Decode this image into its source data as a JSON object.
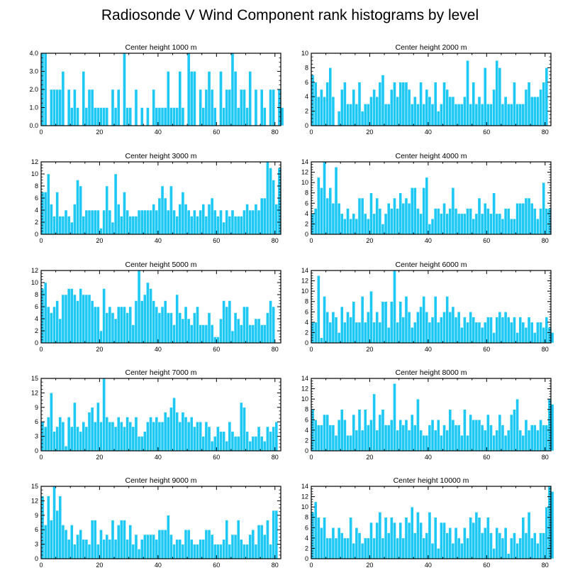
{
  "figure": {
    "title": "Radiosonde V Wind Component rank histograms by level"
  },
  "chart_data": [
    {
      "type": "bar",
      "title": "Center height 1000 m",
      "xlim": [
        0,
        82
      ],
      "xticks": [
        0,
        20,
        40,
        60,
        80
      ],
      "ylim": [
        0,
        4
      ],
      "yticks": [
        0,
        1,
        2,
        3,
        4
      ],
      "ytick_labels": [
        "0.0",
        "1.0",
        "2.0",
        "3.0",
        "4.0"
      ],
      "x_start": 0,
      "values": [
        4,
        4,
        0,
        2,
        2,
        2,
        2,
        3,
        0,
        2,
        1,
        2,
        1,
        0,
        3,
        1,
        2,
        2,
        1,
        1,
        1,
        1,
        1,
        0,
        2,
        1,
        2,
        0,
        4,
        1,
        1,
        0,
        2,
        0,
        1,
        0,
        1,
        0,
        2,
        1,
        1,
        1,
        1,
        3,
        1,
        1,
        1,
        3,
        1,
        0,
        4,
        3,
        3,
        0,
        2,
        1,
        2,
        3,
        2,
        1,
        0,
        3,
        1,
        2,
        2,
        4,
        3,
        1,
        2,
        2,
        1,
        3,
        0,
        2,
        0,
        2,
        1,
        0,
        2,
        2,
        0,
        2,
        1
      ]
    },
    {
      "type": "bar",
      "title": "Center height 2000 m",
      "xlim": [
        0,
        82
      ],
      "xticks": [
        0,
        20,
        40,
        60,
        80
      ],
      "ylim": [
        0,
        10
      ],
      "yticks": [
        0,
        2,
        4,
        6,
        8,
        10
      ],
      "ytick_labels": [
        "0",
        "2",
        "4",
        "6",
        "8",
        "10"
      ],
      "x_start": 0,
      "values": [
        7,
        6,
        4,
        5,
        4,
        6,
        8,
        4,
        0,
        2,
        5,
        6,
        3,
        3,
        5,
        3,
        6,
        2,
        3,
        3,
        4,
        5,
        4,
        6,
        7,
        3,
        3,
        5,
        6,
        4,
        6,
        6,
        6,
        5,
        3,
        4,
        3,
        6,
        3,
        5,
        4,
        3,
        6,
        2,
        3,
        6,
        5,
        4,
        4,
        3,
        3,
        3,
        4,
        9,
        3,
        6,
        3,
        4,
        3,
        8,
        3,
        3,
        5,
        9,
        8,
        3,
        4,
        3,
        3,
        6,
        3,
        3,
        3,
        5,
        6,
        4,
        4,
        4,
        5,
        6,
        8,
        0,
        0
      ]
    },
    {
      "type": "bar",
      "title": "Center height 3000 m",
      "xlim": [
        0,
        82
      ],
      "xticks": [
        0,
        20,
        40,
        60,
        80
      ],
      "ylim": [
        0,
        12
      ],
      "yticks": [
        0,
        2,
        4,
        6,
        8,
        10,
        12
      ],
      "ytick_labels": [
        "0",
        "2",
        "4",
        "6",
        "8",
        "10",
        "12"
      ],
      "x_start": 0,
      "values": [
        7,
        7,
        10,
        5,
        3,
        7,
        3,
        3,
        4,
        3,
        2,
        5,
        9,
        8,
        3,
        4,
        4,
        4,
        4,
        4,
        1,
        4,
        8,
        4,
        2,
        10,
        5,
        3,
        7,
        4,
        3,
        3,
        3,
        4,
        4,
        4,
        4,
        4,
        5,
        4,
        6,
        8,
        6,
        4,
        8,
        4,
        3,
        5,
        7,
        5,
        4,
        3,
        4,
        3,
        4,
        5,
        3,
        5,
        6,
        4,
        3,
        4,
        2,
        4,
        3,
        4,
        3,
        3,
        3,
        4,
        5,
        4,
        4,
        5,
        4,
        6,
        6,
        12,
        11,
        9,
        5,
        11,
        0
      ]
    },
    {
      "type": "bar",
      "title": "Center height 4000 m",
      "xlim": [
        0,
        82
      ],
      "xticks": [
        0,
        20,
        40,
        60,
        80
      ],
      "ylim": [
        0,
        14
      ],
      "yticks": [
        0,
        2,
        4,
        6,
        8,
        10,
        12,
        14
      ],
      "ytick_labels": [
        "0",
        "2",
        "4",
        "6",
        "8",
        "10",
        "12",
        "14"
      ],
      "x_start": 0,
      "values": [
        4,
        5,
        11,
        9,
        14,
        7,
        9,
        6,
        13,
        6,
        4,
        3,
        5,
        3,
        4,
        3,
        7,
        7,
        4,
        3,
        8,
        4,
        7,
        5,
        2,
        4,
        6,
        5,
        7,
        5,
        8,
        6,
        7,
        6,
        9,
        9,
        5,
        4,
        9,
        11,
        2,
        3,
        5,
        5,
        4,
        6,
        4,
        5,
        9,
        5,
        4,
        4,
        4,
        5,
        5,
        3,
        4,
        7,
        4,
        6,
        5,
        4,
        8,
        4,
        4,
        3,
        5,
        5,
        3,
        3,
        6,
        6,
        6,
        7,
        7,
        6,
        5,
        3,
        5,
        10,
        5,
        5,
        0
      ]
    },
    {
      "type": "bar",
      "title": "Center height 5000 m",
      "xlim": [
        0,
        82
      ],
      "xticks": [
        0,
        20,
        40,
        60,
        80
      ],
      "ylim": [
        0,
        12
      ],
      "yticks": [
        0,
        2,
        4,
        6,
        8,
        10,
        12
      ],
      "ytick_labels": [
        "0",
        "2",
        "4",
        "6",
        "8",
        "10",
        "12"
      ],
      "x_start": 0,
      "values": [
        9,
        10,
        6,
        5,
        6,
        7,
        4,
        8,
        8,
        9,
        9,
        8,
        7,
        9,
        8,
        8,
        8,
        7,
        6,
        6,
        2,
        9,
        5,
        6,
        5,
        4,
        6,
        6,
        6,
        5,
        6,
        3,
        7,
        12,
        7,
        8,
        10,
        9,
        7,
        6,
        5,
        6,
        7,
        5,
        5,
        3,
        8,
        5,
        4,
        6,
        4,
        3,
        5,
        6,
        3,
        3,
        3,
        5,
        3,
        1,
        1,
        4,
        7,
        6,
        7,
        2,
        5,
        4,
        3,
        6,
        6,
        3,
        3,
        4,
        4,
        3,
        3,
        5,
        7,
        6,
        0,
        0,
        0
      ]
    },
    {
      "type": "bar",
      "title": "Center height 6000 m",
      "xlim": [
        0,
        82
      ],
      "xticks": [
        0,
        20,
        40,
        60,
        80
      ],
      "ylim": [
        0,
        14
      ],
      "yticks": [
        0,
        2,
        4,
        6,
        8,
        10,
        12,
        14
      ],
      "ytick_labels": [
        "0",
        "2",
        "4",
        "6",
        "8",
        "10",
        "12",
        "14"
      ],
      "x_start": 0,
      "values": [
        4,
        4,
        13,
        1,
        9,
        6,
        4,
        6,
        5,
        2,
        7,
        4,
        6,
        5,
        8,
        4,
        4,
        9,
        4,
        6,
        10,
        4,
        6,
        4,
        8,
        8,
        3,
        8,
        14,
        4,
        8,
        5,
        9,
        6,
        3,
        4,
        6,
        7,
        9,
        6,
        4,
        5,
        9,
        4,
        5,
        6,
        9,
        6,
        7,
        5,
        6,
        3,
        5,
        4,
        6,
        5,
        4,
        4,
        3,
        4,
        5,
        5,
        2,
        5,
        6,
        5,
        6,
        5,
        4,
        5,
        2,
        5,
        4,
        3,
        5,
        4,
        2,
        4,
        4,
        3,
        5,
        3,
        2
      ]
    },
    {
      "type": "bar",
      "title": "Center height 7000 m",
      "xlim": [
        0,
        82
      ],
      "xticks": [
        0,
        20,
        40,
        60,
        80
      ],
      "ylim": [
        0,
        15
      ],
      "yticks": [
        0,
        3,
        6,
        9,
        12,
        15
      ],
      "ytick_labels": [
        "0",
        "3",
        "6",
        "9",
        "12",
        "15"
      ],
      "x_start": 0,
      "values": [
        6,
        5,
        7,
        12,
        4,
        5,
        7,
        6,
        1,
        7,
        5,
        10,
        5,
        4,
        6,
        5,
        8,
        9,
        6,
        10,
        6,
        15,
        7,
        6,
        6,
        5,
        7,
        6,
        5,
        7,
        6,
        5,
        7,
        3,
        3,
        4,
        6,
        7,
        6,
        7,
        6,
        6,
        8,
        7,
        9,
        11,
        8,
        6,
        8,
        7,
        6,
        7,
        5,
        6,
        6,
        3,
        6,
        5,
        2,
        3,
        5,
        4,
        4,
        2,
        6,
        4,
        3,
        3,
        10,
        9,
        4,
        2,
        3,
        3,
        5,
        3,
        2,
        5,
        4,
        5,
        6,
        0,
        0
      ]
    },
    {
      "type": "bar",
      "title": "Center height 8000 m",
      "xlim": [
        0,
        82
      ],
      "xticks": [
        0,
        20,
        40,
        60,
        80
      ],
      "ylim": [
        0,
        14
      ],
      "yticks": [
        0,
        2,
        4,
        6,
        8,
        10,
        12,
        14
      ],
      "ytick_labels": [
        "0",
        "2",
        "4",
        "6",
        "8",
        "10",
        "12",
        "14"
      ],
      "x_start": 0,
      "values": [
        8,
        6,
        5,
        5,
        7,
        7,
        5,
        5,
        3,
        6,
        8,
        6,
        3,
        3,
        7,
        4,
        8,
        4,
        8,
        5,
        6,
        11,
        4,
        7,
        8,
        5,
        5,
        6,
        13,
        4,
        6,
        5,
        6,
        4,
        7,
        5,
        10,
        4,
        3,
        3,
        5,
        6,
        4,
        6,
        3,
        5,
        4,
        8,
        6,
        5,
        5,
        3,
        8,
        3,
        7,
        6,
        6,
        6,
        5,
        4,
        7,
        5,
        3,
        4,
        7,
        5,
        3,
        4,
        7,
        8,
        10,
        4,
        3,
        6,
        4,
        5,
        5,
        4,
        6,
        5,
        5,
        10,
        9
      ]
    },
    {
      "type": "bar",
      "title": "Center height 9000 m",
      "xlim": [
        0,
        82
      ],
      "xticks": [
        0,
        20,
        40,
        60,
        80
      ],
      "ylim": [
        0,
        15
      ],
      "yticks": [
        0,
        3,
        6,
        9,
        12,
        15
      ],
      "ytick_labels": [
        "0",
        "3",
        "6",
        "9",
        "12",
        "15"
      ],
      "x_start": 0,
      "values": [
        13,
        7,
        13,
        8,
        15,
        10,
        13,
        7,
        6,
        4,
        7,
        3,
        5,
        6,
        4,
        4,
        3,
        8,
        8,
        3,
        6,
        4,
        5,
        4,
        8,
        4,
        7,
        8,
        8,
        4,
        7,
        3,
        5,
        2,
        4,
        5,
        5,
        5,
        5,
        4,
        6,
        6,
        6,
        9,
        5,
        3,
        4,
        4,
        3,
        6,
        6,
        4,
        3,
        3,
        4,
        4,
        6,
        6,
        5,
        3,
        3,
        3,
        4,
        8,
        3,
        5,
        5,
        8,
        4,
        3,
        3,
        5,
        6,
        3,
        7,
        7,
        5,
        8,
        3,
        10,
        10,
        0,
        0
      ]
    },
    {
      "type": "bar",
      "title": "Center height 10000 m",
      "xlim": [
        0,
        82
      ],
      "xticks": [
        0,
        20,
        40,
        60,
        80
      ],
      "ylim": [
        0,
        14
      ],
      "yticks": [
        0,
        2,
        4,
        6,
        8,
        10,
        12,
        14
      ],
      "ytick_labels": [
        "0",
        "2",
        "4",
        "6",
        "8",
        "10",
        "12",
        "14"
      ],
      "x_start": 0,
      "values": [
        9,
        11,
        8,
        6,
        8,
        4,
        4,
        6,
        4,
        6,
        5,
        4,
        4,
        8,
        3,
        6,
        5,
        3,
        4,
        4,
        7,
        4,
        7,
        9,
        4,
        8,
        5,
        8,
        7,
        4,
        7,
        4,
        8,
        7,
        10,
        5,
        9,
        7,
        4,
        5,
        9,
        3,
        8,
        2,
        7,
        7,
        5,
        6,
        3,
        6,
        4,
        3,
        6,
        4,
        8,
        7,
        9,
        8,
        5,
        6,
        8,
        5,
        2,
        6,
        5,
        4,
        6,
        1,
        4,
        5,
        3,
        4,
        8,
        5,
        9,
        4,
        5,
        3,
        5,
        5,
        10,
        14,
        13
      ]
    }
  ]
}
